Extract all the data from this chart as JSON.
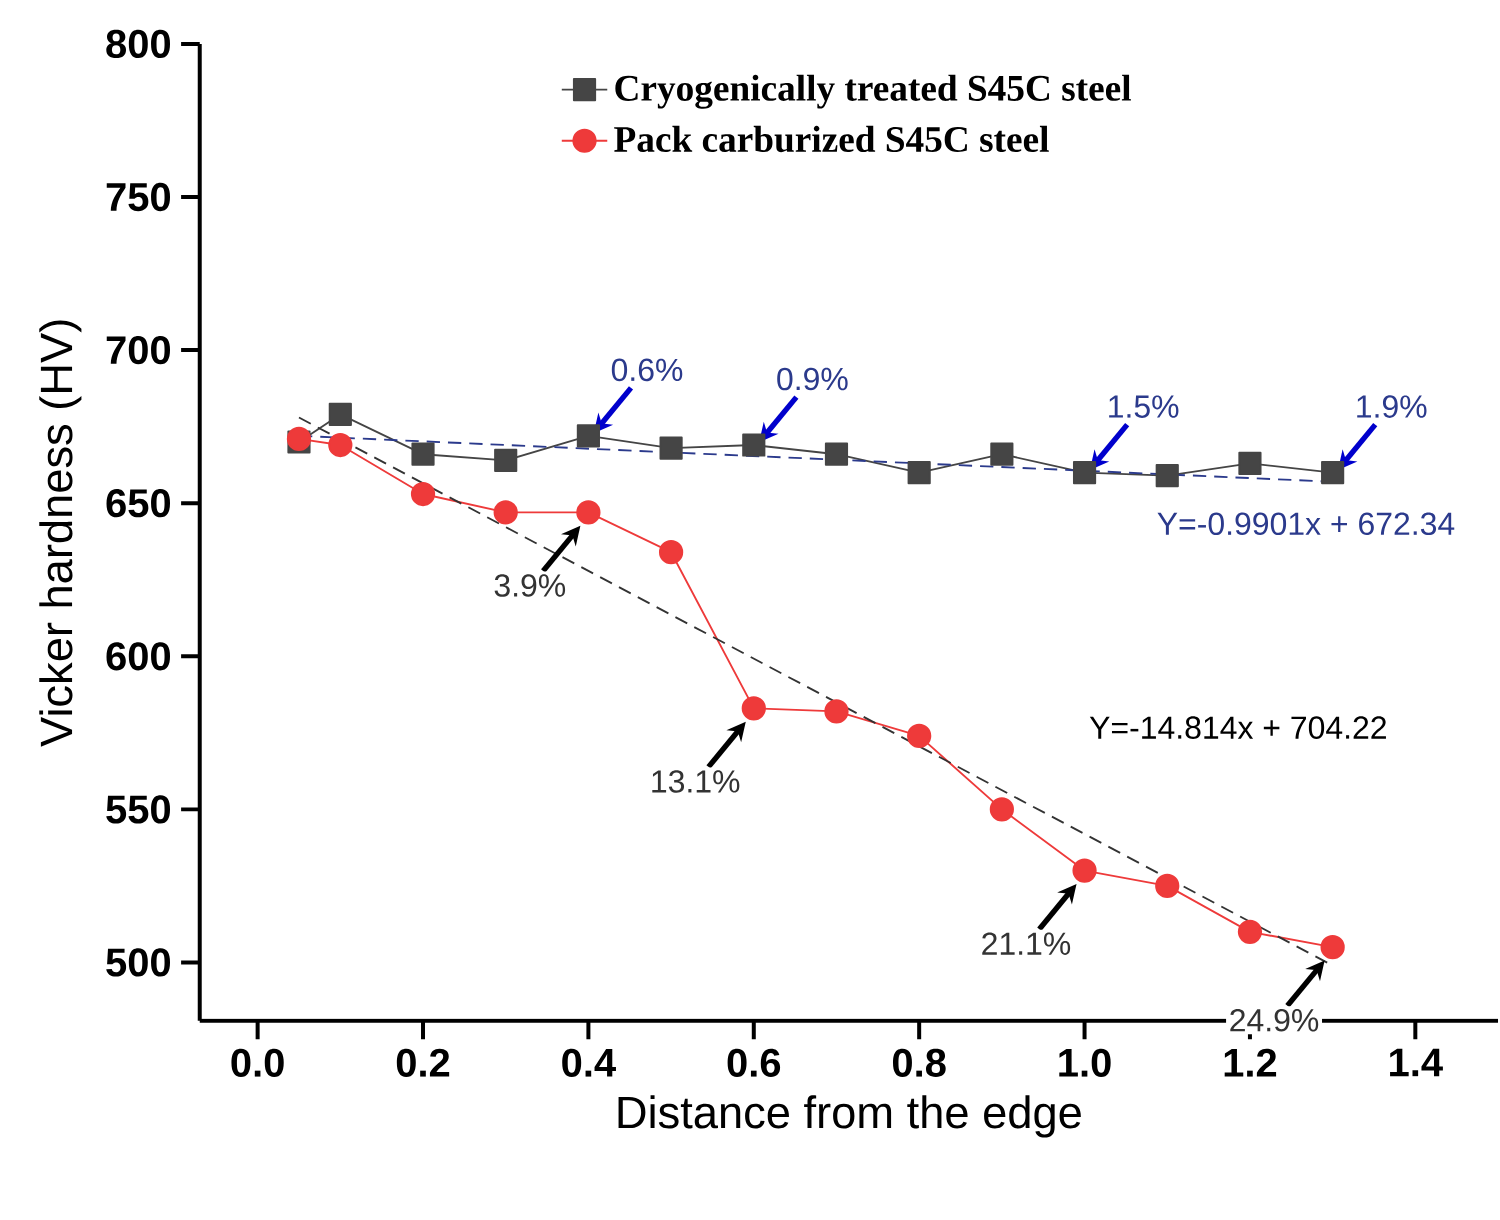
{
  "chart_data": {
    "type": "line",
    "xlabel": "Distance from the edge",
    "ylabel": "Vicker hardness (HV)",
    "xlim": [
      -0.07,
      1.5
    ],
    "ylim": [
      481,
      800
    ],
    "xticks": [
      {
        "value": 0,
        "label": "0.0"
      },
      {
        "value": 0.2,
        "label": "0.2"
      },
      {
        "value": 0.4,
        "label": "0.4"
      },
      {
        "value": 0.6,
        "label": "0.6"
      },
      {
        "value": 0.8,
        "label": "0.8"
      },
      {
        "value": 1,
        "label": "1.0"
      },
      {
        "value": 1.2,
        "label": "1.2"
      },
      {
        "value": 1.4,
        "label": "1.4"
      }
    ],
    "yticks": [
      500,
      550,
      600,
      650,
      700,
      750,
      800
    ],
    "legend": "top",
    "grid": false,
    "series": [
      {
        "name": "Cryogenically treated S45C steel",
        "color": "#454545",
        "marker": "square",
        "line_style": "solid",
        "x": [
          0.05,
          0.1,
          0.2,
          0.3,
          0.4,
          0.5,
          0.6,
          0.7,
          0.8,
          0.9,
          1.0,
          1.1,
          1.2,
          1.3
        ],
        "values": [
          670,
          679,
          666,
          664,
          672,
          668,
          669,
          666,
          660,
          666,
          660,
          659,
          663,
          660
        ]
      },
      {
        "color": "#2b3a8c",
        "type": "line",
        "marker": "none",
        "line_style": "dashed",
        "x": [
          0.05,
          1.3
        ],
        "values": [
          672,
          657
        ]
      },
      {
        "name": "Pack carburized S45C steel",
        "color": "#ee3a3a",
        "marker": "circle",
        "line_style": "solid",
        "x": [
          0.05,
          0.1,
          0.2,
          0.3,
          0.4,
          0.5,
          0.6,
          0.7,
          0.8,
          0.9,
          1.0,
          1.1,
          1.2,
          1.3
        ],
        "values": [
          671,
          669,
          653,
          647,
          647,
          634,
          583,
          582,
          574,
          550,
          530,
          525,
          510,
          505
        ]
      },
      {
        "color": "#333333",
        "type": "line",
        "marker": "none",
        "line_style": "dashed",
        "x": [
          0.05,
          1.3
        ],
        "values": [
          678,
          499
        ]
      }
    ],
    "annotations": [
      {
        "text": "0.6%",
        "x": 0.4,
        "y": 672
      },
      {
        "text": "0.9%",
        "x": 0.6,
        "y": 669
      },
      {
        "text": "1.5%",
        "x": 1.0,
        "y": 660
      },
      {
        "text": "1.9%",
        "x": 1.3,
        "y": 660
      },
      {
        "text": "3.9%",
        "x": 0.4,
        "y": 647
      },
      {
        "text": "13.1%",
        "x": 0.6,
        "y": 583
      },
      {
        "text": "21.1%",
        "x": 1.0,
        "y": 530
      },
      {
        "text": "24.9%",
        "x": 1.3,
        "y": 505
      },
      {
        "text": "Y=-0.9901x + 672.34",
        "x": 1.3,
        "y": 657
      },
      "Y=-14.814x + 704.22"
    ]
  }
}
